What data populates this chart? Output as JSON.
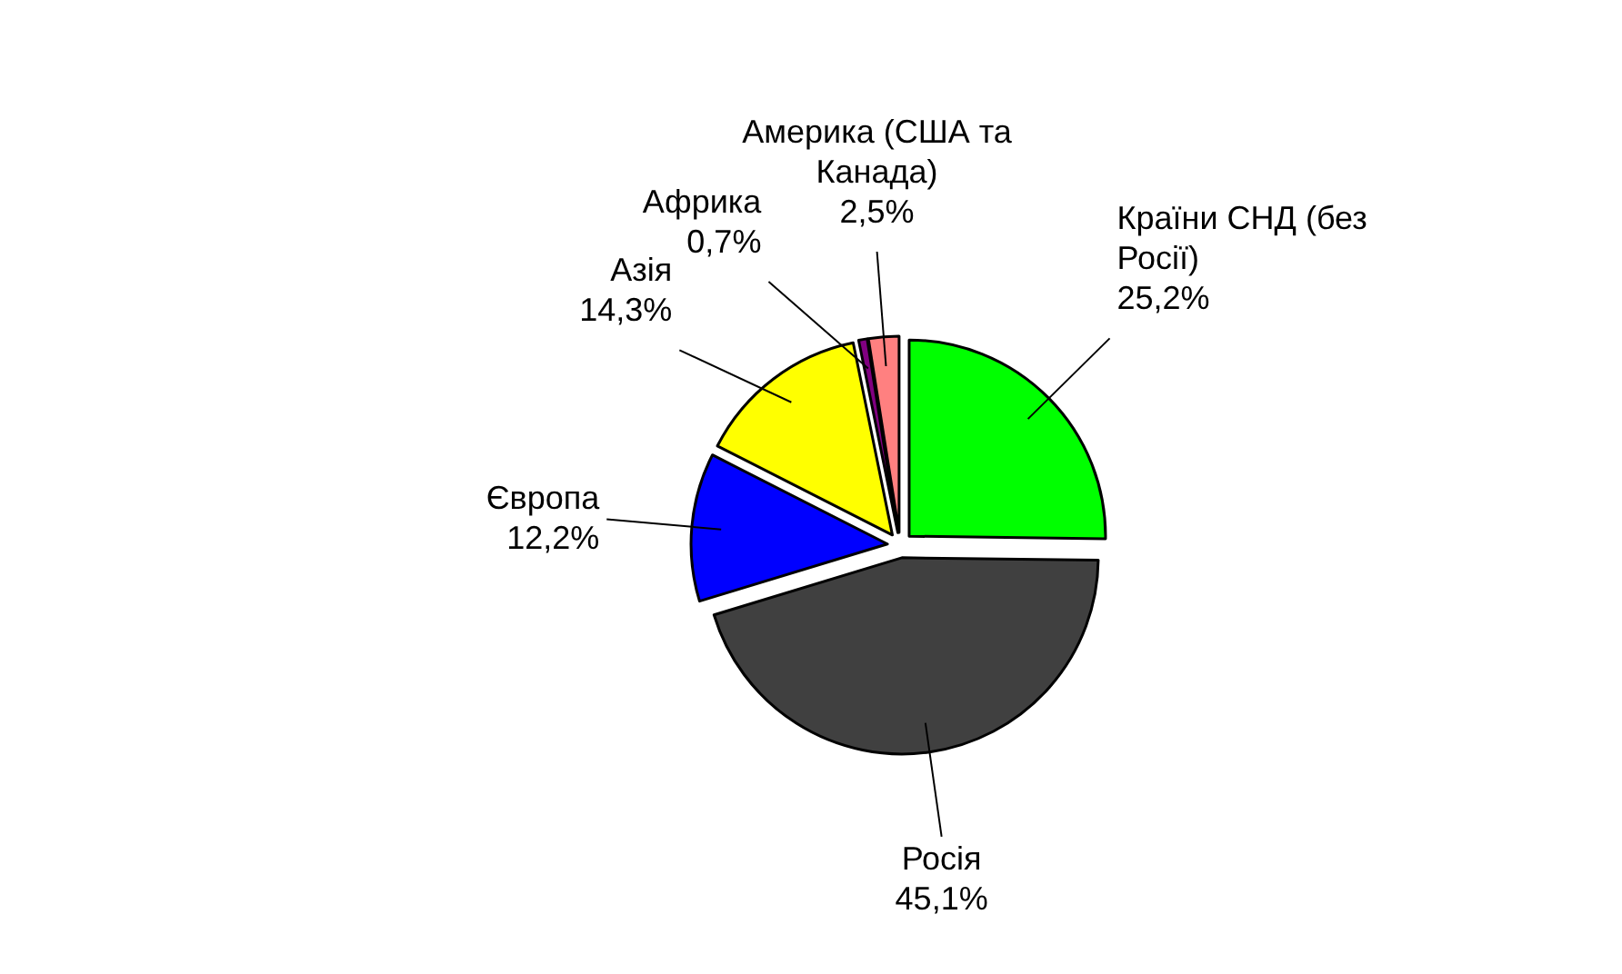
{
  "chart_data": {
    "type": "pie",
    "categories": [
      "Країни СНД (без Росії)",
      "Росія",
      "Європа",
      "Азія",
      "Африка",
      "Америка (США та Канада)"
    ],
    "values": [
      25.2,
      45.1,
      12.2,
      14.3,
      0.7,
      2.5
    ],
    "value_labels": [
      "25,2%",
      "45,1%",
      "12,2%",
      "14,3%",
      "0,7%",
      "2,5%"
    ],
    "colors": [
      "#00ff00",
      "#404040",
      "#0000ff",
      "#ffff00",
      "#800080",
      "#ff8080"
    ]
  }
}
